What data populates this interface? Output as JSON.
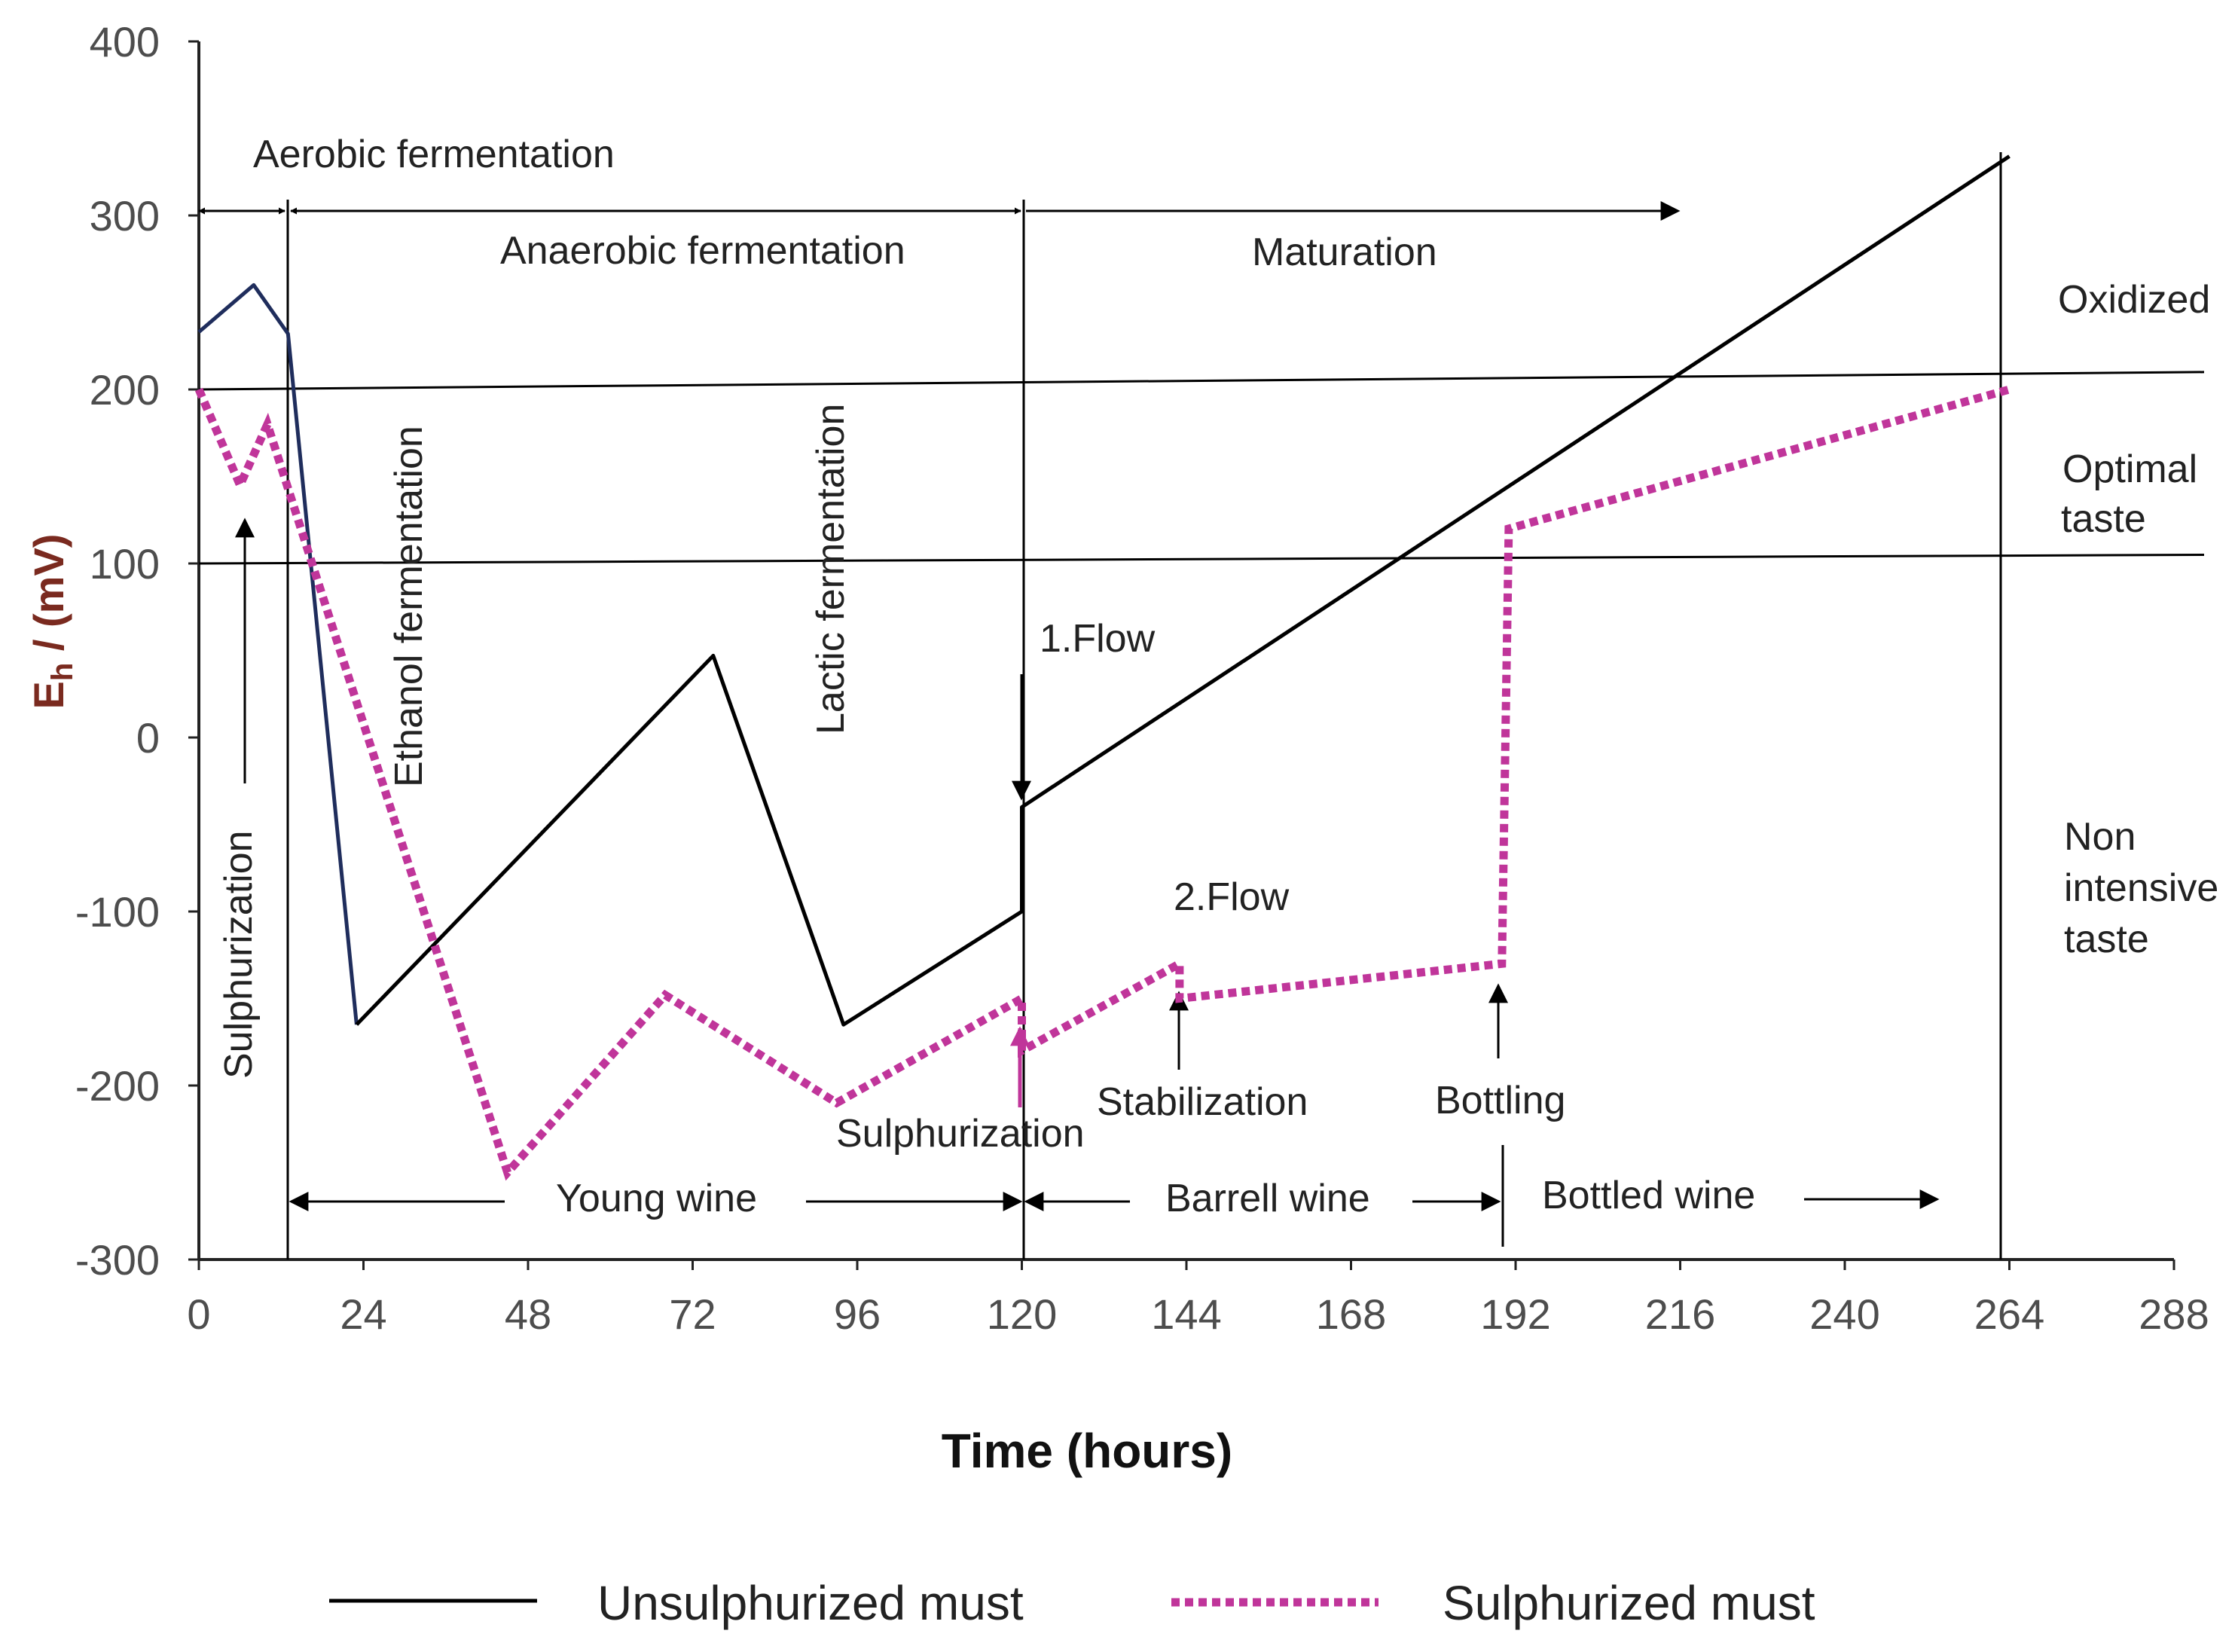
{
  "chart_data": {
    "type": "line",
    "xlabel": "Time (hours)",
    "ylabel": "Eh / (mV)",
    "ylabel_main": "E",
    "ylabel_sub": "h",
    "ylabel_rest": " / (mV)",
    "xlim": [
      0,
      288
    ],
    "ylim": [
      -300,
      400
    ],
    "x_ticks": [
      "0",
      "24",
      "48",
      "72",
      "96",
      "120",
      "144",
      "168",
      "192",
      "216",
      "240",
      "264",
      "288"
    ],
    "y_ticks": [
      "400",
      "300",
      "200",
      "100",
      "0",
      "-100",
      "-200",
      "-300"
    ],
    "threshold_lines": [
      {
        "name": "upper",
        "y_start": 200,
        "y_end": 210
      },
      {
        "name": "lower",
        "y_start": 100,
        "y_end": 105
      }
    ],
    "series": [
      {
        "name": "Unsulphurized must",
        "color": "#000000",
        "color_early": "#1f2d5c",
        "style": "solid",
        "x": [
          0,
          8,
          13,
          23,
          75,
          94,
          120,
          120,
          264
        ],
        "y": [
          233,
          260,
          232,
          -165,
          47,
          -165,
          -100,
          -40,
          334
        ]
      },
      {
        "name": "Sulphurized must",
        "color": "#c0359a",
        "style": "dotted",
        "x": [
          0,
          6,
          10,
          45,
          68,
          93,
          120,
          120,
          143,
          143,
          190,
          191,
          264
        ],
        "y": [
          200,
          145,
          180,
          -250,
          -148,
          -210,
          -150,
          -180,
          -130,
          -150,
          -130,
          120,
          200
        ]
      }
    ],
    "annotations": {
      "aerobic": "Aerobic fermentation",
      "anaerobic": "Anaerobic fermentation",
      "maturation": "Maturation",
      "oxidized": "Oxidized",
      "optimal_1": "Optimal",
      "optimal_2": "taste",
      "non_1": "Non",
      "non_2": "intensive",
      "non_3": "taste",
      "ethanol": "Ethanol fermentation",
      "lactic": "Lactic fermentation",
      "sulph_v": "Sulphurization",
      "flow1": "1.Flow",
      "flow2": "2.Flow",
      "stabilization": "Stabilization",
      "bottling": "Bottling",
      "sulph_h": "Sulphurization",
      "young": "Young wine",
      "barrell": "Barrell wine",
      "bottled": "Bottled wine"
    }
  },
  "legend": {
    "unsulphurized": "Unsulphurized must",
    "sulphurized": "Sulphurized must"
  }
}
